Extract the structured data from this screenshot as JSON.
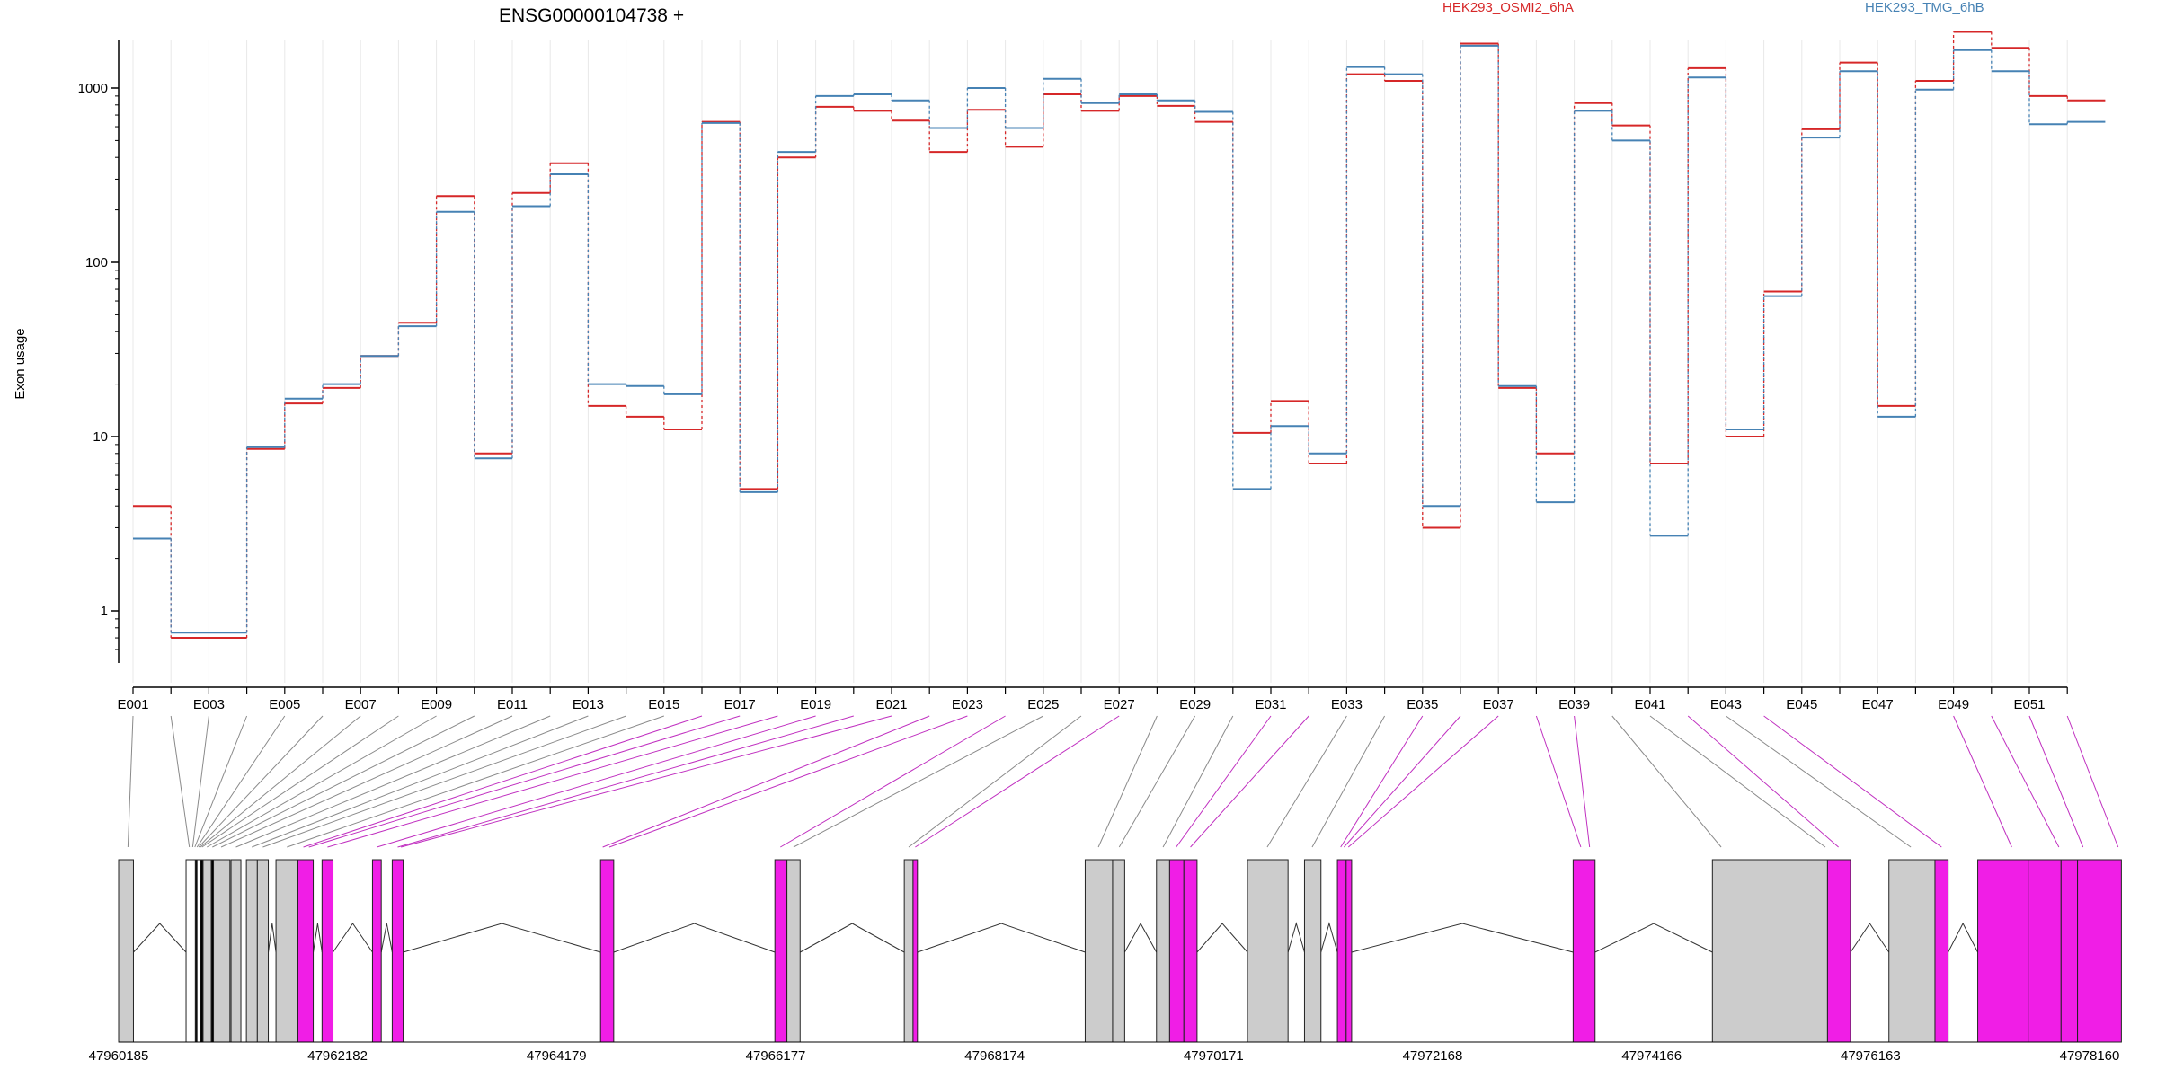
{
  "chart_data": {
    "type": "line",
    "title": "ENSG00000104738 +",
    "ylabel": "Exon usage",
    "yscale": "log",
    "ylim": [
      0.5,
      3000
    ],
    "yticks": [
      1,
      10,
      100,
      1000
    ],
    "ytick_labels": [
      "1",
      "10",
      "100",
      "1000"
    ],
    "grid": "vertical",
    "exons": [
      "E001",
      "E002",
      "E003",
      "E004",
      "E005",
      "E006",
      "E007",
      "E008",
      "E009",
      "E010",
      "E011",
      "E012",
      "E013",
      "E014",
      "E015",
      "E016",
      "E017",
      "E018",
      "E019",
      "E020",
      "E021",
      "E022",
      "E023",
      "E024",
      "E025",
      "E026",
      "E027",
      "E028",
      "E029",
      "E030",
      "E031",
      "E032",
      "E033",
      "E034",
      "E035",
      "E036",
      "E037",
      "E038",
      "E039",
      "E040",
      "E041",
      "E042",
      "E043",
      "E044",
      "E045",
      "E046",
      "E047",
      "E048",
      "E049",
      "E050",
      "E051",
      "E052"
    ],
    "exon_tick_labels": [
      "E001",
      "E003",
      "E005",
      "E007",
      "E009",
      "E011",
      "E013",
      "E015",
      "E017",
      "E019",
      "E021",
      "E023",
      "E025",
      "E027",
      "E029",
      "E031",
      "E033",
      "E035",
      "E037",
      "E039",
      "E041",
      "E043",
      "E045",
      "E047",
      "E049",
      "E051"
    ],
    "series": [
      {
        "name": "HEK293_OSMI2_6hA",
        "color": "#d62728",
        "values": [
          4.0,
          0.7,
          0.7,
          8.5,
          15.5,
          19,
          29,
          45,
          240,
          8,
          250,
          370,
          15,
          13,
          11,
          640,
          5,
          400,
          780,
          740,
          650,
          430,
          750,
          460,
          920,
          740,
          900,
          790,
          640,
          10.5,
          16,
          7,
          1200,
          1100,
          3,
          1800,
          19,
          8,
          820,
          610,
          7,
          1300,
          10,
          68,
          580,
          1400,
          15,
          1100,
          2100,
          1700,
          900,
          850
        ]
      },
      {
        "name": "HEK293_TMG_6hB",
        "color": "#4682b4",
        "values": [
          2.6,
          0.75,
          0.75,
          8.7,
          16.5,
          20,
          29,
          43,
          195,
          7.5,
          210,
          320,
          20,
          19.5,
          17.5,
          630,
          4.8,
          430,
          900,
          920,
          850,
          590,
          1000,
          590,
          1130,
          820,
          920,
          850,
          730,
          5,
          11.5,
          8,
          1320,
          1200,
          4,
          1750,
          19.5,
          4.2,
          740,
          500,
          2.7,
          1150,
          11,
          64,
          520,
          1250,
          13,
          980,
          1650,
          1250,
          620,
          640
        ]
      }
    ],
    "gene_model": {
      "coord_labels": [
        "47960185",
        "47962182",
        "47964179",
        "47966177",
        "47968174",
        "47970171",
        "47972168",
        "47974166",
        "47976163",
        "47978160"
      ],
      "coord_start": 47960185,
      "coord_end": 47978160,
      "exons": [
        {
          "start": 47960185,
          "end": 47960320,
          "status": "nonsignificant"
        },
        {
          "start": 47960800,
          "end": 47960885,
          "status": "unexpressed"
        },
        {
          "start": 47960885,
          "end": 47960900,
          "status": "black"
        },
        {
          "start": 47960900,
          "end": 47960930,
          "status": "unexpressed"
        },
        {
          "start": 47960930,
          "end": 47960955,
          "status": "black"
        },
        {
          "start": 47960955,
          "end": 47961030,
          "status": "nonsignificant"
        },
        {
          "start": 47961030,
          "end": 47961050,
          "status": "black"
        },
        {
          "start": 47961050,
          "end": 47961200,
          "status": "nonsignificant"
        },
        {
          "start": 47961210,
          "end": 47961300,
          "status": "nonsignificant"
        },
        {
          "start": 47961350,
          "end": 47961450,
          "status": "nonsignificant"
        },
        {
          "start": 47961450,
          "end": 47961550,
          "status": "nonsignificant"
        },
        {
          "start": 47961620,
          "end": 47961820,
          "status": "nonsignificant"
        },
        {
          "start": 47961820,
          "end": 47961960,
          "status": "significant"
        },
        {
          "start": 47962040,
          "end": 47962140,
          "status": "significant"
        },
        {
          "start": 47962500,
          "end": 47962580,
          "status": "significant"
        },
        {
          "start": 47962680,
          "end": 47962780,
          "status": "significant"
        },
        {
          "start": 47964580,
          "end": 47964700,
          "status": "significant"
        },
        {
          "start": 47966170,
          "end": 47966280,
          "status": "significant"
        },
        {
          "start": 47966280,
          "end": 47966400,
          "status": "nonsignificant"
        },
        {
          "start": 47967350,
          "end": 47967430,
          "status": "nonsignificant"
        },
        {
          "start": 47967430,
          "end": 47967470,
          "status": "significant"
        },
        {
          "start": 47969000,
          "end": 47969250,
          "status": "nonsignificant"
        },
        {
          "start": 47969250,
          "end": 47969360,
          "status": "nonsignificant"
        },
        {
          "start": 47969650,
          "end": 47969770,
          "status": "nonsignificant"
        },
        {
          "start": 47969770,
          "end": 47969900,
          "status": "significant"
        },
        {
          "start": 47969900,
          "end": 47970020,
          "status": "significant"
        },
        {
          "start": 47970480,
          "end": 47970850,
          "status": "nonsignificant"
        },
        {
          "start": 47971000,
          "end": 47971150,
          "status": "nonsignificant"
        },
        {
          "start": 47971300,
          "end": 47971380,
          "status": "significant"
        },
        {
          "start": 47971380,
          "end": 47971430,
          "status": "significant"
        },
        {
          "start": 47973450,
          "end": 47973650,
          "status": "significant"
        },
        {
          "start": 47974720,
          "end": 47975770,
          "status": "nonsignificant"
        },
        {
          "start": 47975770,
          "end": 47975980,
          "status": "significant"
        },
        {
          "start": 47976330,
          "end": 47976750,
          "status": "nonsignificant"
        },
        {
          "start": 47976750,
          "end": 47976870,
          "status": "significant"
        },
        {
          "start": 47977140,
          "end": 47977600,
          "status": "significant"
        },
        {
          "start": 47977600,
          "end": 47977900,
          "status": "significant"
        },
        {
          "start": 47977900,
          "end": 47978050,
          "status": "significant"
        },
        {
          "start": 47978050,
          "end": 47978450,
          "status": "significant"
        }
      ],
      "connectors": [
        {
          "exon": 1,
          "pos": 47960270,
          "sig": false
        },
        {
          "exon": 2,
          "pos": 47960830,
          "sig": false
        },
        {
          "exon": 3,
          "pos": 47960860,
          "sig": false
        },
        {
          "exon": 4,
          "pos": 47960880,
          "sig": false
        },
        {
          "exon": 5,
          "pos": 47960900,
          "sig": false
        },
        {
          "exon": 6,
          "pos": 47960915,
          "sig": false
        },
        {
          "exon": 7,
          "pos": 47960930,
          "sig": false
        },
        {
          "exon": 8,
          "pos": 47960945,
          "sig": false
        },
        {
          "exon": 9,
          "pos": 47960990,
          "sig": false
        },
        {
          "exon": 10,
          "pos": 47961040,
          "sig": false
        },
        {
          "exon": 11,
          "pos": 47961120,
          "sig": false
        },
        {
          "exon": 12,
          "pos": 47961255,
          "sig": false
        },
        {
          "exon": 13,
          "pos": 47961400,
          "sig": false
        },
        {
          "exon": 14,
          "pos": 47961500,
          "sig": false
        },
        {
          "exon": 15,
          "pos": 47961720,
          "sig": false
        },
        {
          "exon": 16,
          "pos": 47961870,
          "sig": true
        },
        {
          "exon": 17,
          "pos": 47961920,
          "sig": true
        },
        {
          "exon": 18,
          "pos": 47962090,
          "sig": true
        },
        {
          "exon": 19,
          "pos": 47962540,
          "sig": true
        },
        {
          "exon": 20,
          "pos": 47962730,
          "sig": true
        },
        {
          "exon": 21,
          "pos": 47962760,
          "sig": true
        },
        {
          "exon": 22,
          "pos": 47964600,
          "sig": true
        },
        {
          "exon": 23,
          "pos": 47964660,
          "sig": true
        },
        {
          "exon": 24,
          "pos": 47966220,
          "sig": true
        },
        {
          "exon": 25,
          "pos": 47966340,
          "sig": false
        },
        {
          "exon": 26,
          "pos": 47967390,
          "sig": false
        },
        {
          "exon": 27,
          "pos": 47967450,
          "sig": true
        },
        {
          "exon": 28,
          "pos": 47969120,
          "sig": false
        },
        {
          "exon": 29,
          "pos": 47969310,
          "sig": false
        },
        {
          "exon": 30,
          "pos": 47969710,
          "sig": false
        },
        {
          "exon": 31,
          "pos": 47969830,
          "sig": true
        },
        {
          "exon": 32,
          "pos": 47969960,
          "sig": true
        },
        {
          "exon": 33,
          "pos": 47970660,
          "sig": false
        },
        {
          "exon": 34,
          "pos": 47971070,
          "sig": false
        },
        {
          "exon": 35,
          "pos": 47971330,
          "sig": true
        },
        {
          "exon": 36,
          "pos": 47971360,
          "sig": true
        },
        {
          "exon": 37,
          "pos": 47971400,
          "sig": true
        },
        {
          "exon": 38,
          "pos": 47973520,
          "sig": true
        },
        {
          "exon": 39,
          "pos": 47973600,
          "sig": true
        },
        {
          "exon": 40,
          "pos": 47974800,
          "sig": false
        },
        {
          "exon": 41,
          "pos": 47975750,
          "sig": false
        },
        {
          "exon": 42,
          "pos": 47975870,
          "sig": true
        },
        {
          "exon": 43,
          "pos": 47976530,
          "sig": false
        },
        {
          "exon": 44,
          "pos": 47976810,
          "sig": true
        },
        {
          "exon": 49,
          "pos": 47977450,
          "sig": true
        },
        {
          "exon": 50,
          "pos": 47977880,
          "sig": true
        },
        {
          "exon": 51,
          "pos": 47978100,
          "sig": true
        },
        {
          "exon": 52,
          "pos": 47978420,
          "sig": true
        }
      ]
    }
  }
}
